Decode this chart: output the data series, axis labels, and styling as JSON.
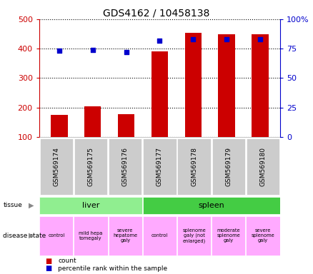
{
  "title": "GDS4162 / 10458138",
  "samples": [
    "GSM569174",
    "GSM569175",
    "GSM569176",
    "GSM569177",
    "GSM569178",
    "GSM569179",
    "GSM569180"
  ],
  "counts": [
    175,
    205,
    178,
    390,
    453,
    450,
    448
  ],
  "percentile_ranks": [
    73,
    74,
    72,
    82,
    83,
    83,
    83
  ],
  "ylim_left": [
    100,
    500
  ],
  "ylim_right": [
    0,
    100
  ],
  "yticks_left": [
    100,
    200,
    300,
    400,
    500
  ],
  "yticks_right": [
    0,
    25,
    50,
    75,
    100
  ],
  "ytick_labels_right": [
    "0",
    "25",
    "50",
    "75",
    "100%"
  ],
  "bar_color": "#cc0000",
  "scatter_color": "#0000cc",
  "tissue_groups": [
    {
      "label": "liver",
      "start": 0,
      "end": 3,
      "color": "#90ee90"
    },
    {
      "label": "spleen",
      "start": 3,
      "end": 7,
      "color": "#44cc44"
    }
  ],
  "disease_states": [
    {
      "label": "control",
      "start": 0,
      "end": 1,
      "color": "#ffaaff"
    },
    {
      "label": "mild hepa\ntomegaly",
      "start": 1,
      "end": 2,
      "color": "#ffaaff"
    },
    {
      "label": "severe\nhepatome\ngaly",
      "start": 2,
      "end": 3,
      "color": "#ffaaff"
    },
    {
      "label": "control",
      "start": 3,
      "end": 4,
      "color": "#ffaaff"
    },
    {
      "label": "splenome\ngaly (not\nenlarged)",
      "start": 4,
      "end": 5,
      "color": "#ffaaff"
    },
    {
      "label": "moderate\nsplenome\ngaly",
      "start": 5,
      "end": 6,
      "color": "#ffaaff"
    },
    {
      "label": "severe\nsplenome\ngaly",
      "start": 6,
      "end": 7,
      "color": "#ffaaff"
    }
  ],
  "bar_width": 0.5,
  "scatter_size": 25,
  "bar_color_hex": "#cc0000",
  "scatter_color_hex": "#0000cc",
  "axis_label_color_left": "#cc0000",
  "axis_label_color_right": "#0000cc",
  "xlabel_bg_color": "#cccccc",
  "legend_items": [
    {
      "label": "count",
      "color": "#cc0000"
    },
    {
      "label": "percentile rank within the sample",
      "color": "#0000cc"
    }
  ]
}
